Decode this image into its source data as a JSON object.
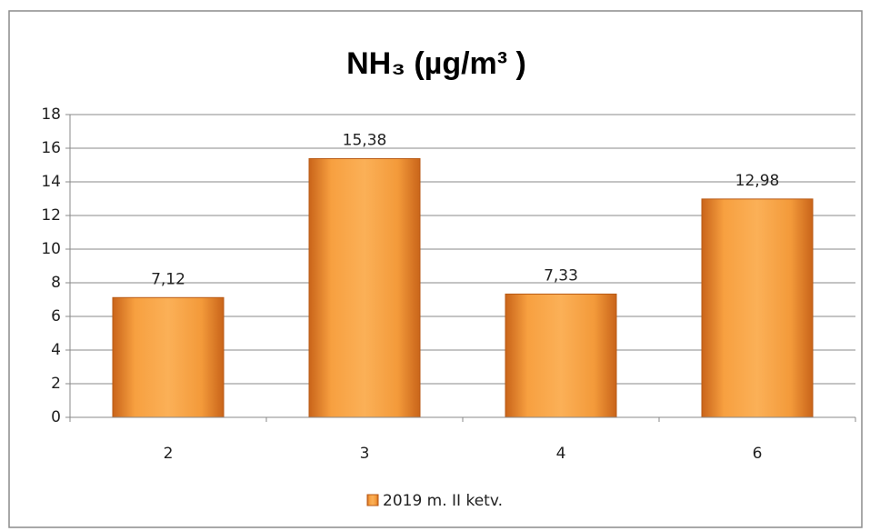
{
  "chart_data": {
    "type": "bar",
    "title": "NH₃ (µg/m³ )",
    "categories": [
      "2",
      "3",
      "4",
      "6"
    ],
    "series": [
      {
        "name": "2019 m. II ketv.",
        "color": "#f39a3a",
        "values": [
          7.12,
          15.38,
          7.33,
          12.98
        ],
        "value_labels": [
          "7,12",
          "15,38",
          "7,33",
          "12,98"
        ]
      }
    ],
    "ylim": [
      0,
      18
    ],
    "yticks": [
      0,
      2,
      4,
      6,
      8,
      10,
      12,
      14,
      16,
      18
    ],
    "grid": true,
    "legend": "bottom"
  }
}
